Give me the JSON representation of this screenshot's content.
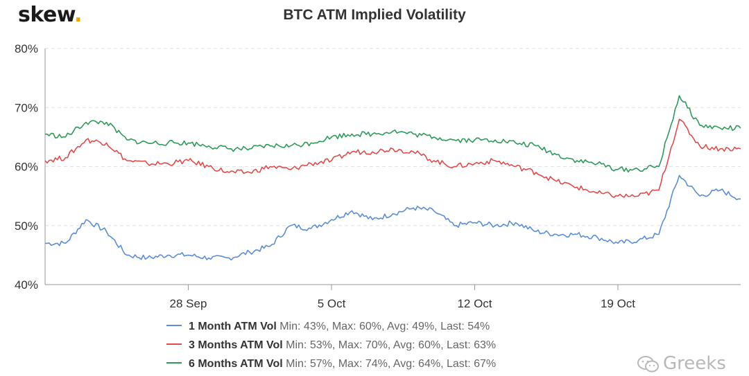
{
  "brand": {
    "logo_text": "skew",
    "logo_dot": ".",
    "accent": "#f0a500"
  },
  "watermark": {
    "text": "Greeks"
  },
  "chart_data": {
    "type": "line",
    "title": "BTC ATM Implied Volatility",
    "xlabel": "",
    "ylabel": "",
    "x_start": "2020-09-21",
    "x_end": "2020-10-25",
    "x_ticks": [
      {
        "label": "28 Sep",
        "date": "2020-09-28"
      },
      {
        "label": "5 Oct",
        "date": "2020-10-05"
      },
      {
        "label": "12 Oct",
        "date": "2020-10-12"
      },
      {
        "label": "19 Oct",
        "date": "2020-10-19"
      }
    ],
    "y_ticks": [
      "40%",
      "50%",
      "60%",
      "70%",
      "80%"
    ],
    "ylim": [
      40,
      80
    ],
    "grid": "horizontal dashed",
    "legend_position": "bottom",
    "series": [
      {
        "name": "1 Month ATM Vol",
        "stats": "Min: 43%, Max: 60%, Avg: 49%, Last: 54%",
        "color": "#5b8ed6",
        "x": [
          "2020-09-21",
          "2020-09-22",
          "2020-09-23",
          "2020-09-24",
          "2020-09-25",
          "2020-09-26",
          "2020-09-27",
          "2020-09-28",
          "2020-09-29",
          "2020-09-30",
          "2020-10-01",
          "2020-10-02",
          "2020-10-03",
          "2020-10-04",
          "2020-10-05",
          "2020-10-06",
          "2020-10-07",
          "2020-10-08",
          "2020-10-09",
          "2020-10-10",
          "2020-10-11",
          "2020-10-12",
          "2020-10-13",
          "2020-10-14",
          "2020-10-15",
          "2020-10-16",
          "2020-10-17",
          "2020-10-18",
          "2020-10-19",
          "2020-10-20",
          "2020-10-21",
          "2020-10-22",
          "2020-10-23",
          "2020-10-24",
          "2020-10-25"
        ],
        "values": [
          47,
          47,
          51,
          49,
          45,
          44.5,
          45,
          45,
          44.5,
          44.5,
          45.5,
          46.5,
          50,
          49.5,
          51,
          52.5,
          51,
          52,
          53,
          52.5,
          50,
          50.5,
          50,
          50.5,
          49,
          48.5,
          48.5,
          48,
          47,
          47.5,
          48.5,
          58.5,
          55,
          56,
          54.5
        ]
      },
      {
        "name": "3 Months ATM Vol",
        "stats": "Min: 53%, Max: 70%, Avg: 60%, Last: 63%",
        "color": "#e24b4b",
        "x": [
          "2020-09-21",
          "2020-09-22",
          "2020-09-23",
          "2020-09-24",
          "2020-09-25",
          "2020-09-26",
          "2020-09-27",
          "2020-09-28",
          "2020-09-29",
          "2020-09-30",
          "2020-10-01",
          "2020-10-02",
          "2020-10-03",
          "2020-10-04",
          "2020-10-05",
          "2020-10-06",
          "2020-10-07",
          "2020-10-08",
          "2020-10-09",
          "2020-10-10",
          "2020-10-11",
          "2020-10-12",
          "2020-10-13",
          "2020-10-14",
          "2020-10-15",
          "2020-10-16",
          "2020-10-17",
          "2020-10-18",
          "2020-10-19",
          "2020-10-20",
          "2020-10-21",
          "2020-10-22",
          "2020-10-23",
          "2020-10-24",
          "2020-10-25"
        ],
        "values": [
          61,
          61.5,
          64.5,
          64,
          61,
          60.5,
          60.5,
          61,
          60,
          59,
          59,
          60,
          59.5,
          60.5,
          61,
          62.5,
          62.5,
          63,
          62.5,
          61,
          60,
          60.5,
          61,
          60,
          59,
          57.5,
          56.5,
          55.5,
          55,
          55,
          56,
          68,
          63.5,
          63,
          63
        ]
      },
      {
        "name": "6 Months ATM Vol",
        "stats": "Min: 57%, Max: 74%, Avg: 64%, Last: 67%",
        "color": "#2e9a5a",
        "x": [
          "2020-09-21",
          "2020-09-22",
          "2020-09-23",
          "2020-09-24",
          "2020-09-25",
          "2020-09-26",
          "2020-09-27",
          "2020-09-28",
          "2020-09-29",
          "2020-09-30",
          "2020-10-01",
          "2020-10-02",
          "2020-10-03",
          "2020-10-04",
          "2020-10-05",
          "2020-10-06",
          "2020-10-07",
          "2020-10-08",
          "2020-10-09",
          "2020-10-10",
          "2020-10-11",
          "2020-10-12",
          "2020-10-13",
          "2020-10-14",
          "2020-10-15",
          "2020-10-16",
          "2020-10-17",
          "2020-10-18",
          "2020-10-19",
          "2020-10-20",
          "2020-10-21",
          "2020-10-22",
          "2020-10-23",
          "2020-10-24",
          "2020-10-25"
        ],
        "values": [
          65.5,
          65,
          67.5,
          67.5,
          64.5,
          64,
          64,
          64,
          63.5,
          63,
          63,
          63.5,
          63.5,
          64,
          65,
          65.5,
          65.5,
          66,
          65.5,
          65,
          64.5,
          64.5,
          64.5,
          64,
          63.5,
          62,
          61,
          60.5,
          59.5,
          59.5,
          60,
          72,
          67,
          66.5,
          66.5
        ]
      }
    ]
  }
}
